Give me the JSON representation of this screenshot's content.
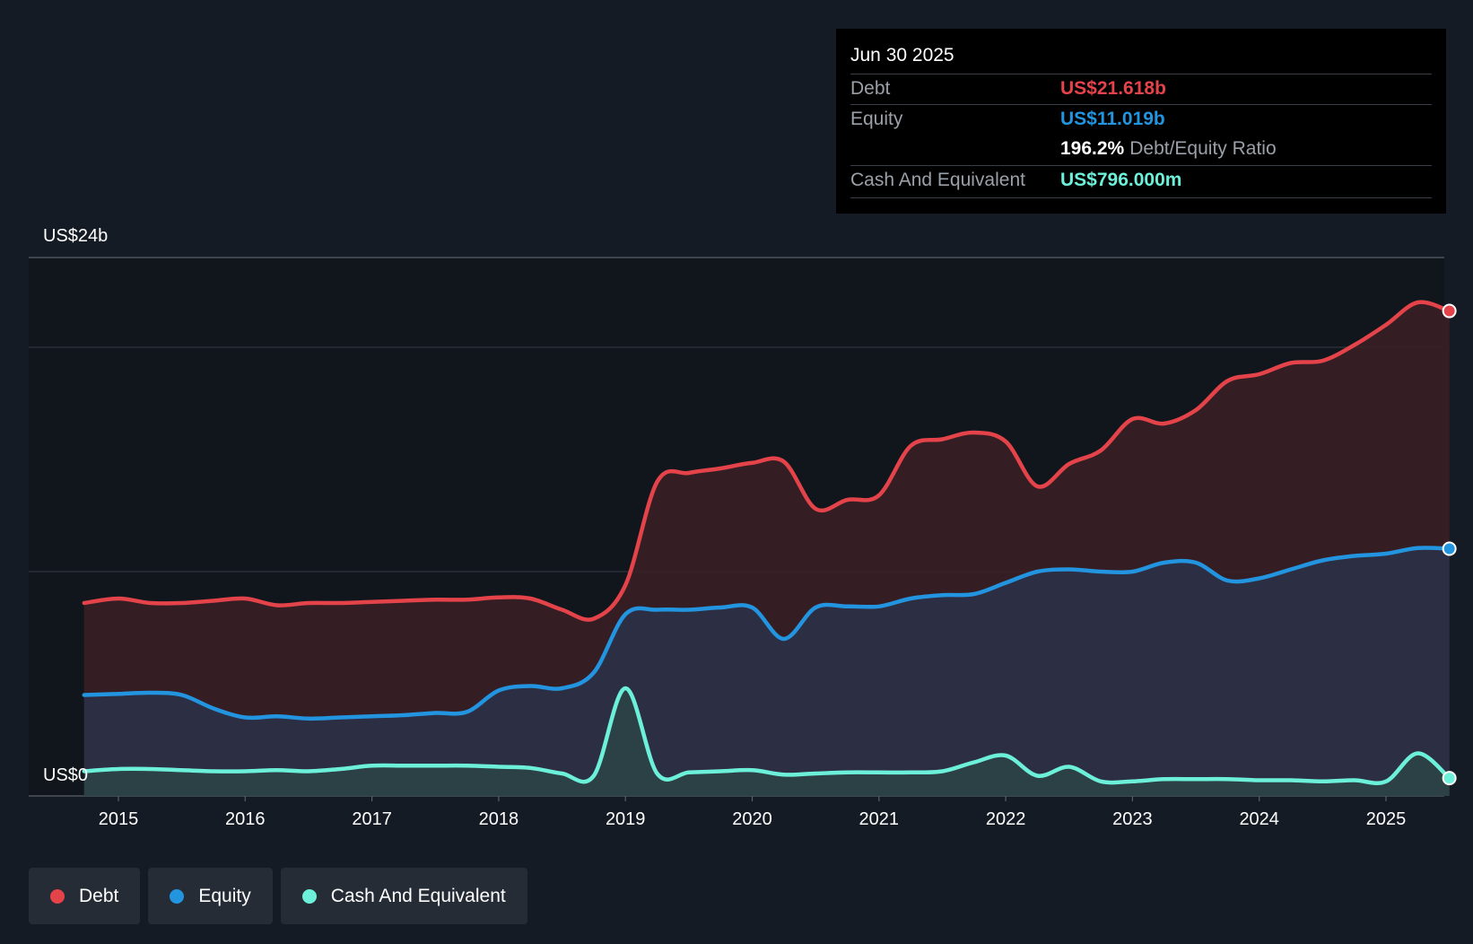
{
  "tooltip": {
    "date": "Jun 30 2025",
    "rows": [
      {
        "label": "Debt",
        "value": "US$21.618b",
        "color": "#e5434a"
      },
      {
        "label": "Equity",
        "value": "US$11.019b",
        "color": "#2394df"
      },
      {
        "ratio_value": "196.2%",
        "ratio_label": "Debt/Equity Ratio"
      },
      {
        "label": "Cash And Equivalent",
        "value": "US$796.000m",
        "color": "#6cf0d9"
      }
    ]
  },
  "legend": [
    {
      "label": "Debt",
      "color": "#e5434a"
    },
    {
      "label": "Equity",
      "color": "#2394df"
    },
    {
      "label": "Cash And Equivalent",
      "color": "#6cf0d9"
    }
  ],
  "chart_data": {
    "type": "area",
    "y_axis_labels": [
      "US$24b",
      "US$0"
    ],
    "ylim": [
      0,
      24
    ],
    "y_unit": "US$ billions",
    "x_ticks": [
      "2015",
      "2016",
      "2017",
      "2018",
      "2019",
      "2020",
      "2021",
      "2022",
      "2023",
      "2024",
      "2025"
    ],
    "xlim": [
      2014.73,
      2025.5
    ],
    "gridlines": [
      24,
      20,
      10,
      0
    ],
    "series": [
      {
        "name": "Debt",
        "color": "#e5434a",
        "x": [
          2014.73,
          2015.0,
          2015.25,
          2015.5,
          2015.75,
          2016.0,
          2016.25,
          2016.5,
          2016.75,
          2017.0,
          2017.25,
          2017.5,
          2017.75,
          2018.0,
          2018.25,
          2018.5,
          2018.75,
          2019.0,
          2019.25,
          2019.5,
          2019.75,
          2020.0,
          2020.25,
          2020.5,
          2020.75,
          2021.0,
          2021.25,
          2021.5,
          2021.75,
          2022.0,
          2022.25,
          2022.5,
          2022.75,
          2023.0,
          2023.25,
          2023.5,
          2023.75,
          2024.0,
          2024.25,
          2024.5,
          2024.75,
          2025.0,
          2025.25,
          2025.5
        ],
        "values": [
          8.6,
          8.8,
          8.6,
          8.6,
          8.7,
          8.8,
          8.5,
          8.6,
          8.6,
          8.65,
          8.7,
          8.75,
          8.75,
          8.85,
          8.8,
          8.3,
          7.9,
          9.4,
          14.0,
          14.4,
          14.6,
          14.85,
          14.9,
          12.8,
          13.2,
          13.4,
          15.6,
          15.9,
          16.2,
          15.8,
          13.8,
          14.8,
          15.4,
          16.8,
          16.6,
          17.2,
          18.5,
          18.8,
          19.3,
          19.4,
          20.1,
          21.0,
          22.0,
          21.618
        ]
      },
      {
        "name": "Equity",
        "color": "#2394df",
        "x": [
          2014.73,
          2015.0,
          2015.25,
          2015.5,
          2015.75,
          2016.0,
          2016.25,
          2016.5,
          2016.75,
          2017.0,
          2017.25,
          2017.5,
          2017.75,
          2018.0,
          2018.25,
          2018.5,
          2018.75,
          2019.0,
          2019.25,
          2019.5,
          2019.75,
          2020.0,
          2020.25,
          2020.5,
          2020.75,
          2021.0,
          2021.25,
          2021.5,
          2021.75,
          2022.0,
          2022.25,
          2022.5,
          2022.75,
          2023.0,
          2023.25,
          2023.5,
          2023.75,
          2024.0,
          2024.25,
          2024.5,
          2024.75,
          2025.0,
          2025.25,
          2025.5
        ],
        "values": [
          4.5,
          4.55,
          4.6,
          4.5,
          3.9,
          3.5,
          3.55,
          3.45,
          3.5,
          3.55,
          3.6,
          3.7,
          3.75,
          4.7,
          4.9,
          4.8,
          5.5,
          8.1,
          8.3,
          8.3,
          8.4,
          8.4,
          7.0,
          8.4,
          8.45,
          8.45,
          8.8,
          8.95,
          9.0,
          9.5,
          10.0,
          10.1,
          10.0,
          10.0,
          10.4,
          10.4,
          9.6,
          9.7,
          10.1,
          10.5,
          10.7,
          10.8,
          11.05,
          11.019
        ]
      },
      {
        "name": "Cash And Equivalent",
        "color": "#6cf0d9",
        "x": [
          2014.73,
          2015.0,
          2015.25,
          2015.5,
          2015.75,
          2016.0,
          2016.25,
          2016.5,
          2016.75,
          2017.0,
          2017.25,
          2017.5,
          2017.75,
          2018.0,
          2018.25,
          2018.5,
          2018.75,
          2019.0,
          2019.25,
          2019.5,
          2019.75,
          2020.0,
          2020.25,
          2020.5,
          2020.75,
          2021.0,
          2021.25,
          2021.5,
          2021.75,
          2022.0,
          2022.25,
          2022.5,
          2022.75,
          2023.0,
          2023.25,
          2023.5,
          2023.75,
          2024.0,
          2024.25,
          2024.5,
          2024.75,
          2025.0,
          2025.25,
          2025.5
        ],
        "values": [
          1.1,
          1.2,
          1.2,
          1.15,
          1.1,
          1.1,
          1.15,
          1.1,
          1.2,
          1.35,
          1.35,
          1.35,
          1.35,
          1.3,
          1.25,
          1.0,
          0.9,
          4.8,
          1.0,
          1.05,
          1.1,
          1.15,
          0.95,
          1.0,
          1.05,
          1.05,
          1.05,
          1.1,
          1.5,
          1.8,
          0.9,
          1.3,
          0.65,
          0.65,
          0.75,
          0.75,
          0.75,
          0.7,
          0.7,
          0.65,
          0.7,
          0.65,
          1.9,
          0.796
        ]
      }
    ]
  }
}
